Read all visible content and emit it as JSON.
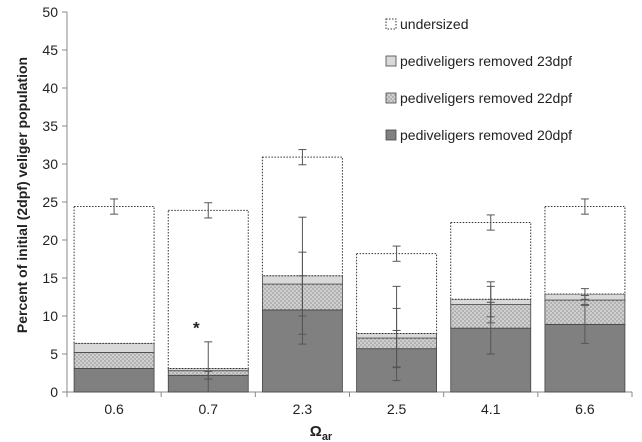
{
  "chart_data": {
    "type": "bar",
    "stacked": true,
    "xlabel": "Ω",
    "xlabel_sub": "ar",
    "ylabel": "Percent of initial (2dpf) veliger population",
    "ylim": [
      0,
      50
    ],
    "yticks": [
      0,
      5,
      10,
      15,
      20,
      25,
      30,
      35,
      40,
      45,
      50
    ],
    "categories": [
      "0.6",
      "0.7",
      "2.3",
      "2.5",
      "4.1",
      "6.6"
    ],
    "series": [
      {
        "name": "pediveligers removed 20dpf",
        "values": [
          3.1,
          2.2,
          10.8,
          5.7,
          8.4,
          8.9
        ],
        "color": "#808080",
        "pattern": "solid",
        "err": [
          0,
          0.5,
          4.5,
          2.4,
          3.4,
          2.5
        ]
      },
      {
        "name": "pediveligers removed 22dpf",
        "values": [
          2.1,
          0.6,
          3.4,
          1.4,
          3.1,
          3.2
        ],
        "color": "#bdbdbd",
        "pattern": "dots",
        "err": [
          0,
          0,
          4.2,
          3.9,
          2.4,
          0.6
        ]
      },
      {
        "name": "pediveligers removed 23dpf",
        "values": [
          1.2,
          0.3,
          1.1,
          0.6,
          0.7,
          0.8
        ],
        "color": "#d9d9d9",
        "pattern": "solid",
        "err": [
          0,
          3.5,
          7.7,
          6.2,
          2.3,
          0.7
        ]
      },
      {
        "name": "undersized",
        "values": [
          18.0,
          20.8,
          15.6,
          10.5,
          10.1,
          11.5
        ],
        "color": "#ffffff",
        "pattern": "dotted-outline",
        "err": [
          1.0,
          1.0,
          1.0,
          1.0,
          1.0,
          1.0
        ]
      }
    ],
    "annotations": [
      {
        "category": "0.7",
        "text": "*",
        "y": 8.6
      }
    ],
    "legend_order": [
      "undersized",
      "pediveligers removed 23dpf",
      "pediveligers removed 22dpf",
      "pediveligers removed 20dpf"
    ],
    "legend_position": "top-right",
    "grid": false
  }
}
